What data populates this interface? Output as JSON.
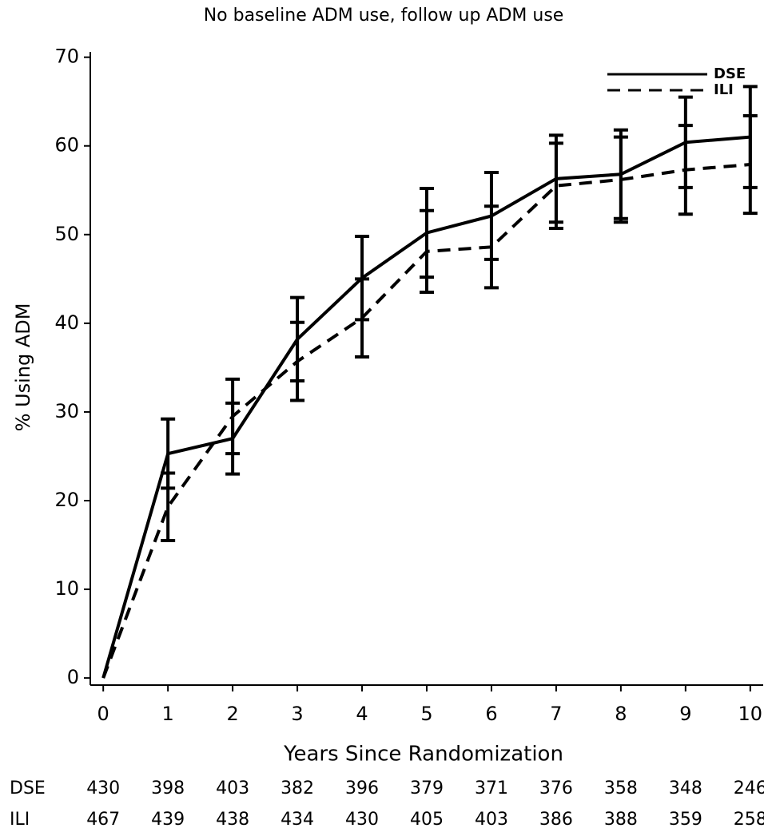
{
  "chart_data": {
    "type": "line",
    "title": "No baseline ADM use, follow up ADM use",
    "x_label": "Years Since Randomization",
    "y_label": "% Using ADM",
    "x": [
      0,
      1,
      2,
      3,
      4,
      5,
      6,
      7,
      8,
      9,
      10
    ],
    "series": [
      {
        "name": "DSE",
        "color": "#000000",
        "dash": "solid",
        "values": [
          0,
          25.3,
          27,
          38.2,
          45.1,
          50.2,
          52.1,
          56.3,
          56.8,
          60.4,
          61.0
        ],
        "errors": [
          null,
          3.9,
          4.0,
          4.7,
          4.7,
          5.0,
          4.9,
          4.9,
          5.0,
          5.1,
          5.7
        ]
      },
      {
        "name": "ILI",
        "color": "#000000",
        "dash": "dashed",
        "values": [
          0,
          19.3,
          29.5,
          35.7,
          40.6,
          48.1,
          48.6,
          55.5,
          56.2,
          57.3,
          57.9
        ],
        "errors": [
          null,
          3.8,
          4.2,
          4.4,
          4.4,
          4.6,
          4.6,
          4.8,
          4.8,
          5.0,
          5.5
        ]
      }
    ],
    "xlim": [
      -0.2,
      10.2
    ],
    "ylim": [
      -0.8,
      70.6
    ],
    "xticks": [
      0,
      1,
      2,
      3,
      4,
      5,
      6,
      7,
      8,
      9,
      10
    ],
    "yticks": [
      0,
      10,
      20,
      30,
      40,
      50,
      60,
      70
    ],
    "legend": "top-right",
    "risk_table": [
      {
        "label": "DSE",
        "counts": [
          430,
          398,
          403,
          382,
          396,
          379,
          371,
          376,
          358,
          348,
          246
        ]
      },
      {
        "label": "ILI",
        "counts": [
          467,
          439,
          438,
          434,
          430,
          405,
          403,
          386,
          388,
          359,
          258
        ]
      }
    ]
  }
}
